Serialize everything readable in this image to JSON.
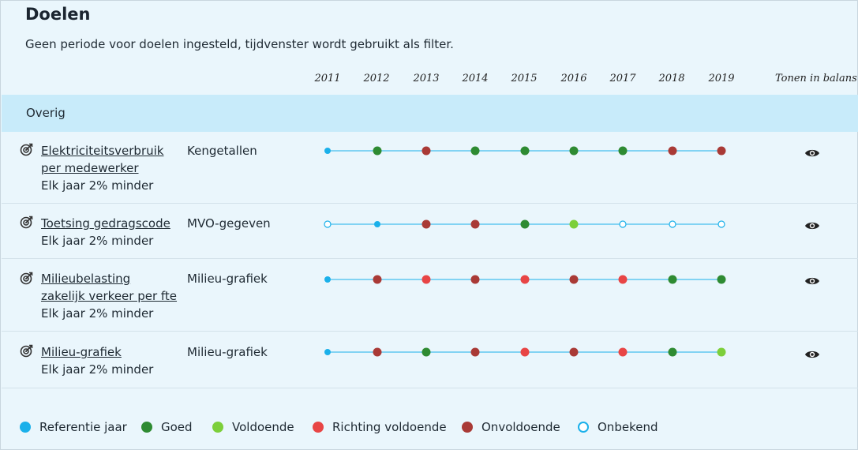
{
  "header": {
    "title": "Doelen",
    "subtitle": "Geen periode voor doelen ingesteld, tijdvenster wordt gebruikt als filter."
  },
  "years": [
    "2011",
    "2012",
    "2013",
    "2014",
    "2015",
    "2016",
    "2017",
    "2018",
    "2019"
  ],
  "balance_header": "Tonen in balans",
  "group": {
    "label": "Overig"
  },
  "status_colors": {
    "referentie": "#1ab0ea",
    "goed": "#2e8b32",
    "voldoende": "#7ccf3a",
    "richting": "#e84545",
    "onvoldoende": "#a93a36",
    "onbekend": "#ffffff"
  },
  "goals": [
    {
      "name_line1": "Elektriciteitsverbruik",
      "name_line2": "per medewerker",
      "description": "Elk jaar 2% minder",
      "category": "Kengetallen",
      "statuses": [
        "referentie",
        "goed",
        "onvoldoende",
        "goed",
        "goed",
        "goed",
        "goed",
        "onvoldoende",
        "onvoldoende"
      ],
      "icon": "target-icon",
      "balance_icon": "eye-icon"
    },
    {
      "name_line1": "Toetsing gedragscode",
      "name_line2": "",
      "description": "Elk jaar 2% minder",
      "category": "MVO-gegeven",
      "statuses": [
        "onbekend",
        "referentie",
        "onvoldoende",
        "onvoldoende",
        "goed",
        "voldoende",
        "onbekend",
        "onbekend",
        "onbekend"
      ],
      "icon": "target-icon",
      "balance_icon": "eye-icon"
    },
    {
      "name_line1": "Milieubelasting",
      "name_line2": "zakelijk verkeer per fte",
      "description": "Elk jaar 2% minder",
      "category": "Milieu-grafiek",
      "statuses": [
        "referentie",
        "onvoldoende",
        "richting",
        "onvoldoende",
        "richting",
        "onvoldoende",
        "richting",
        "goed",
        "goed"
      ],
      "icon": "target-icon",
      "balance_icon": "eye-icon"
    },
    {
      "name_line1": "Milieu-grafiek",
      "name_line2": "",
      "description": "Elk jaar 2% minder",
      "category": "Milieu-grafiek",
      "statuses": [
        "referentie",
        "onvoldoende",
        "goed",
        "onvoldoende",
        "richting",
        "onvoldoende",
        "richting",
        "goed",
        "voldoende"
      ],
      "icon": "target-icon",
      "balance_icon": "eye-icon"
    }
  ],
  "legend": [
    {
      "key": "referentie",
      "label": "Referentie jaar"
    },
    {
      "key": "goed",
      "label": "Goed"
    },
    {
      "key": "voldoende",
      "label": "Voldoende"
    },
    {
      "key": "richting",
      "label": "Richting voldoende"
    },
    {
      "key": "onvoldoende",
      "label": "Onvoldoende"
    },
    {
      "key": "onbekend",
      "label": "Onbekend"
    }
  ]
}
